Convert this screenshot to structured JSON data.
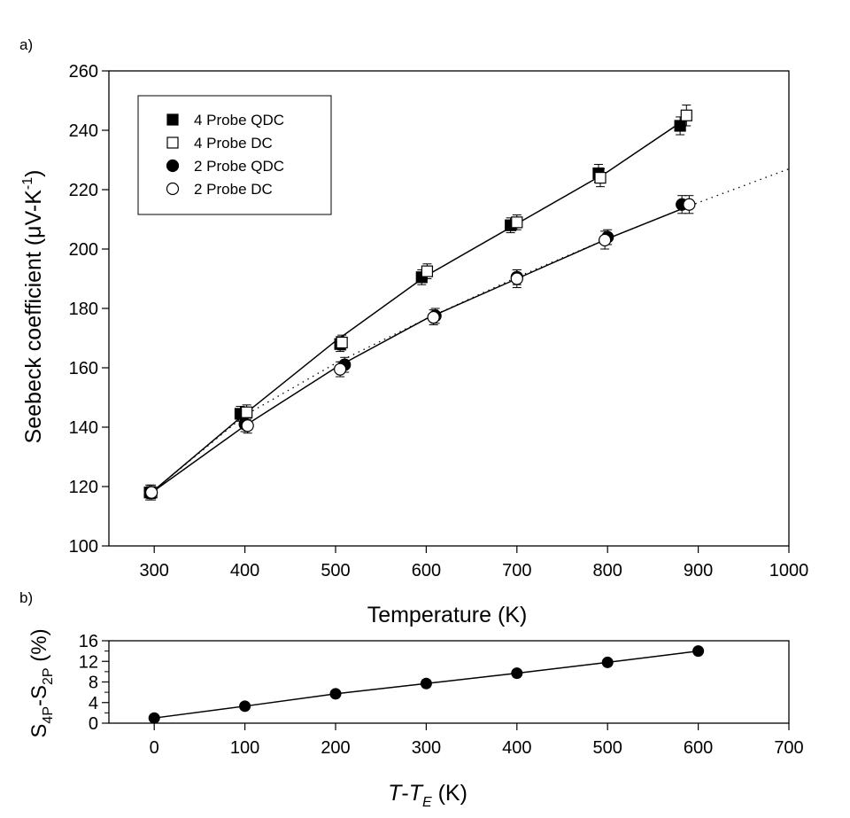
{
  "chart_data": [
    {
      "type": "scatter",
      "panel_label": "a)",
      "xlabel": "Temperature (K)",
      "ylabel": "Seebeck coefficient (μV-K",
      "ylabel_sup": "-1",
      "ylabel_close": ")",
      "xlim": [
        250,
        1000
      ],
      "ylim": [
        100,
        260
      ],
      "xticks": [
        300,
        400,
        500,
        600,
        700,
        800,
        900,
        1000
      ],
      "yticks": [
        100,
        120,
        140,
        160,
        180,
        200,
        220,
        240,
        260
      ],
      "legend_position": "top-left",
      "series": [
        {
          "name": "4 Probe QDC",
          "marker": "square-filled",
          "x": [
            295,
            395,
            505,
            595,
            693,
            790,
            880
          ],
          "y": [
            118,
            144.5,
            168,
            190.5,
            208,
            225.5,
            241.5
          ],
          "err": [
            2.5,
            2.5,
            2.5,
            2.5,
            2.5,
            3,
            3
          ]
        },
        {
          "name": "4 Probe DC",
          "marker": "square-open",
          "x": [
            297,
            402,
            507,
            601,
            700,
            792,
            887
          ],
          "y": [
            118,
            145,
            168.5,
            192.5,
            209,
            224,
            245
          ],
          "err": [
            2.5,
            2.5,
            2.5,
            2.5,
            2.5,
            3,
            3.5
          ]
        },
        {
          "name": "2 Probe QDC",
          "marker": "circle-filled",
          "x": [
            296,
            400,
            510,
            610,
            700,
            800,
            882
          ],
          "y": [
            118,
            141,
            161,
            177.5,
            190.5,
            204,
            215
          ],
          "err": [
            2,
            2.5,
            2.5,
            2.5,
            2.5,
            2.5,
            3
          ]
        },
        {
          "name": "2 Probe DC",
          "marker": "circle-open",
          "x": [
            297,
            403,
            505,
            608,
            700,
            797,
            890
          ],
          "y": [
            118,
            140.5,
            159.5,
            177,
            190,
            203,
            215
          ],
          "err": [
            2,
            2.5,
            2.5,
            2.5,
            3,
            3,
            3
          ]
        }
      ],
      "fit_lines": [
        {
          "style": "solid",
          "x": [
            295,
            400,
            500,
            600,
            700,
            800,
            880
          ],
          "y": [
            117.5,
            144.5,
            169,
            191,
            208.5,
            226,
            242.5
          ]
        },
        {
          "style": "solid",
          "x": [
            295,
            400,
            500,
            600,
            700,
            800,
            890
          ],
          "y": [
            117.5,
            140.5,
            160,
            176.5,
            190,
            203.5,
            214.5
          ]
        },
        {
          "style": "dotted",
          "x": [
            295,
            400,
            500,
            600,
            700,
            800,
            890,
            1000
          ],
          "y": [
            117.5,
            144,
            161.5,
            176.5,
            190.5,
            203.5,
            214.5,
            227
          ]
        }
      ]
    },
    {
      "type": "line",
      "panel_label": "b)",
      "xlabel_italic_1": "T",
      "xlabel_dash": "-",
      "xlabel_italic_2": "T",
      "xlabel_sub": "E",
      "xlabel_rest": " (K)",
      "ylabel_S1": "S",
      "ylabel_sub1": "4P",
      "ylabel_mid": "-S",
      "ylabel_sub2": "2P",
      "ylabel_rest": " (%)",
      "xlim": [
        -50,
        700
      ],
      "ylim": [
        0,
        16
      ],
      "xticks": [
        0,
        100,
        200,
        300,
        400,
        500,
        600,
        700
      ],
      "yticks": [
        0,
        4,
        8,
        12,
        16
      ],
      "minor_yticks": [
        2,
        6,
        10,
        14
      ],
      "x": [
        0,
        100,
        200,
        300,
        400,
        500,
        600
      ],
      "y": [
        1,
        3.3,
        5.7,
        7.7,
        9.7,
        11.8,
        14
      ]
    }
  ]
}
